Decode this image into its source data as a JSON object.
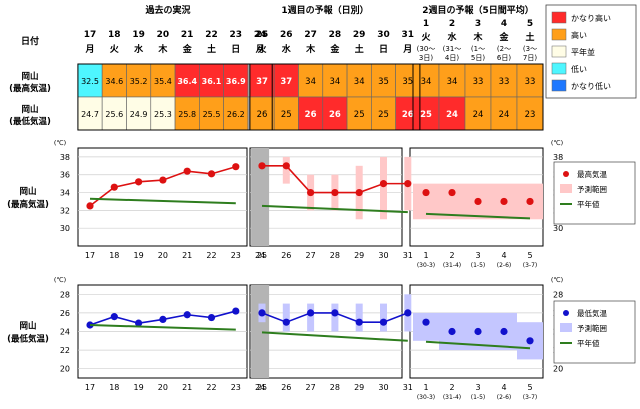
{
  "header": {
    "date_label": "日付",
    "past_title": "過去の実況",
    "week1_title": "1週目の予報（日別）",
    "week2_title": "2週目の予報（5日間平均）",
    "today_label": "当日"
  },
  "past_days": [
    {
      "d": "17",
      "w": "月"
    },
    {
      "d": "18",
      "w": "火"
    },
    {
      "d": "19",
      "w": "水"
    },
    {
      "d": "20",
      "w": "木"
    },
    {
      "d": "21",
      "w": "金"
    },
    {
      "d": "22",
      "w": "土"
    },
    {
      "d": "23",
      "w": "日"
    },
    {
      "d": "24",
      "w": "月"
    }
  ],
  "week1_days": [
    {
      "d": "25",
      "w": "火"
    },
    {
      "d": "26",
      "w": "水"
    },
    {
      "d": "27",
      "w": "木"
    },
    {
      "d": "28",
      "w": "金"
    },
    {
      "d": "29",
      "w": "土"
    },
    {
      "d": "30",
      "w": "日"
    },
    {
      "d": "31",
      "w": "月"
    }
  ],
  "week2_days": [
    {
      "d": "1",
      "w": "火",
      "r": "(30～3日)"
    },
    {
      "d": "2",
      "w": "水",
      "r": "(31～4日)"
    },
    {
      "d": "3",
      "w": "木",
      "r": "(1～5日)"
    },
    {
      "d": "4",
      "w": "金",
      "r": "(2～6日)"
    },
    {
      "d": "5",
      "w": "土",
      "r": "(3～7日)"
    }
  ],
  "table": {
    "rows": [
      {
        "label1": "岡山",
        "label2": "(最高気温)",
        "past": [
          "32.5",
          "34.6",
          "35.2",
          "35.4",
          "36.4",
          "36.1",
          "36.9"
        ],
        "past_class": [
          "low",
          "high",
          "high",
          "high",
          "vhigh",
          "vhigh",
          "vhigh"
        ],
        "w1": [
          "37",
          "37",
          "34",
          "34",
          "34",
          "35",
          "35"
        ],
        "w1_class": [
          "vhigh",
          "vhigh",
          "high",
          "high",
          "high",
          "high",
          "high"
        ],
        "w2": [
          "34",
          "34",
          "33",
          "33",
          "33"
        ],
        "w2_class": [
          "high",
          "high",
          "high",
          "high",
          "high"
        ]
      },
      {
        "label1": "岡山",
        "label2": "(最低気温)",
        "past": [
          "24.7",
          "25.6",
          "24.9",
          "25.3",
          "25.8",
          "25.5",
          "26.2"
        ],
        "past_class": [
          "normal",
          "normal",
          "normal",
          "normal",
          "high",
          "high",
          "high"
        ],
        "w1": [
          "26",
          "25",
          "26",
          "26",
          "25",
          "25",
          "26"
        ],
        "w1_class": [
          "high",
          "high",
          "vhigh",
          "vhigh",
          "high",
          "high",
          "vhigh"
        ],
        "w2": [
          "25",
          "24",
          "24",
          "24",
          "23"
        ],
        "w2_class": [
          "vhigh",
          "vhigh",
          "high",
          "high",
          "high"
        ]
      }
    ]
  },
  "legend_table": [
    {
      "key": "vhigh",
      "label": "かなり高い"
    },
    {
      "key": "high",
      "label": "高い"
    },
    {
      "key": "normal",
      "label": "平年並"
    },
    {
      "key": "low",
      "label": "低い"
    },
    {
      "key": "vlow",
      "label": "かなり低い"
    }
  ],
  "colors": {
    "vhigh": "#ff2b2b",
    "high": "#ff9f1a",
    "normal": "#fffde6",
    "low": "#4ef6ff",
    "vlow": "#1e78ff",
    "today": "#b4b4b4",
    "max_line": "#dd1111",
    "min_line": "#1111cc",
    "max_range": "#ffc8c8",
    "min_range": "#c4c6ff",
    "normal_line": "#2e7d1e"
  },
  "charts": {
    "unit": "(℃)",
    "max": {
      "label1": "岡山",
      "label2": "(最高気温)",
      "ymin": 28,
      "ymax": 39,
      "ticks": [
        30,
        32,
        34,
        36,
        38
      ],
      "legend": {
        "point": "最高気温",
        "range": "予測範囲",
        "normal": "平年値"
      }
    },
    "min": {
      "label1": "岡山",
      "label2": "(最低気温)",
      "ymin": 19,
      "ymax": 29,
      "ticks": [
        20,
        22,
        24,
        26,
        28
      ],
      "legend": {
        "point": "最低気温",
        "range": "予測範囲",
        "normal": "平年値"
      }
    }
  },
  "chart_data": [
    {
      "type": "line",
      "title": "岡山 (最高気温)",
      "ylabel": "(℃)",
      "ylim": [
        28,
        39
      ],
      "categories": [
        "17",
        "18",
        "19",
        "20",
        "21",
        "22",
        "23",
        "24",
        "25",
        "26",
        "27",
        "28",
        "29",
        "30",
        "31",
        "1",
        "2",
        "3",
        "4",
        "5"
      ],
      "series": [
        {
          "name": "最高気温",
          "part": "past",
          "x": [
            "17",
            "18",
            "19",
            "20",
            "21",
            "22",
            "23"
          ],
          "values": [
            32.5,
            34.6,
            35.2,
            35.4,
            36.4,
            36.1,
            36.9
          ]
        },
        {
          "name": "最高気温",
          "part": "week1",
          "x": [
            "25",
            "26",
            "27",
            "28",
            "29",
            "30",
            "31"
          ],
          "values": [
            37,
            37,
            34,
            34,
            34,
            35,
            35
          ]
        },
        {
          "name": "最高気温",
          "part": "week2",
          "x": [
            "1",
            "2",
            "3",
            "4",
            "5"
          ],
          "values": [
            34,
            34,
            33,
            33,
            33
          ]
        },
        {
          "name": "平年値",
          "part": "past",
          "x": [
            "17",
            "23"
          ],
          "values": [
            33.3,
            32.8
          ]
        },
        {
          "name": "平年値",
          "part": "week1",
          "x": [
            "25",
            "31"
          ],
          "values": [
            32.5,
            31.8
          ]
        },
        {
          "name": "平年値",
          "part": "week2",
          "x": [
            "1",
            "5"
          ],
          "values": [
            31.6,
            31.1
          ]
        }
      ],
      "ranges": {
        "name": "予測範囲",
        "week1": [
          null,
          [
            35,
            38
          ],
          [
            32,
            36
          ],
          [
            32,
            36
          ],
          [
            31,
            37
          ],
          [
            31,
            38
          ],
          [
            32,
            38
          ]
        ],
        "week2": [
          [
            31,
            35
          ],
          [
            31,
            35
          ],
          [
            31,
            35
          ],
          [
            31,
            35
          ],
          [
            31,
            35
          ]
        ]
      }
    },
    {
      "type": "line",
      "title": "岡山 (最低気温)",
      "ylabel": "(℃)",
      "ylim": [
        19,
        29
      ],
      "categories": [
        "17",
        "18",
        "19",
        "20",
        "21",
        "22",
        "23",
        "24",
        "25",
        "26",
        "27",
        "28",
        "29",
        "30",
        "31",
        "1",
        "2",
        "3",
        "4",
        "5"
      ],
      "series": [
        {
          "name": "最低気温",
          "part": "past",
          "x": [
            "17",
            "18",
            "19",
            "20",
            "21",
            "22",
            "23"
          ],
          "values": [
            24.7,
            25.6,
            24.9,
            25.3,
            25.8,
            25.5,
            26.2
          ]
        },
        {
          "name": "最低気温",
          "part": "week1",
          "x": [
            "25",
            "26",
            "27",
            "28",
            "29",
            "30",
            "31"
          ],
          "values": [
            26,
            25,
            26,
            26,
            25,
            25,
            26
          ]
        },
        {
          "name": "最低気温",
          "part": "week2",
          "x": [
            "1",
            "2",
            "3",
            "4",
            "5"
          ],
          "values": [
            25,
            24,
            24,
            24,
            23
          ]
        },
        {
          "name": "平年値",
          "part": "past",
          "x": [
            "17",
            "23"
          ],
          "values": [
            24.7,
            24.2
          ]
        },
        {
          "name": "平年値",
          "part": "week1",
          "x": [
            "25",
            "31"
          ],
          "values": [
            23.9,
            23.0
          ]
        },
        {
          "name": "平年値",
          "part": "week2",
          "x": [
            "1",
            "5"
          ],
          "values": [
            22.9,
            22.2
          ]
        }
      ],
      "ranges": {
        "name": "予測範囲",
        "week1": [
          [
            25,
            27
          ],
          [
            24,
            27
          ],
          [
            24,
            27
          ],
          [
            24,
            27
          ],
          [
            24,
            27
          ],
          [
            24,
            27
          ],
          [
            24,
            28
          ]
        ],
        "week2": [
          [
            23,
            26
          ],
          [
            22,
            26
          ],
          [
            22,
            26
          ],
          [
            22,
            26
          ],
          [
            21,
            25
          ]
        ]
      }
    }
  ]
}
